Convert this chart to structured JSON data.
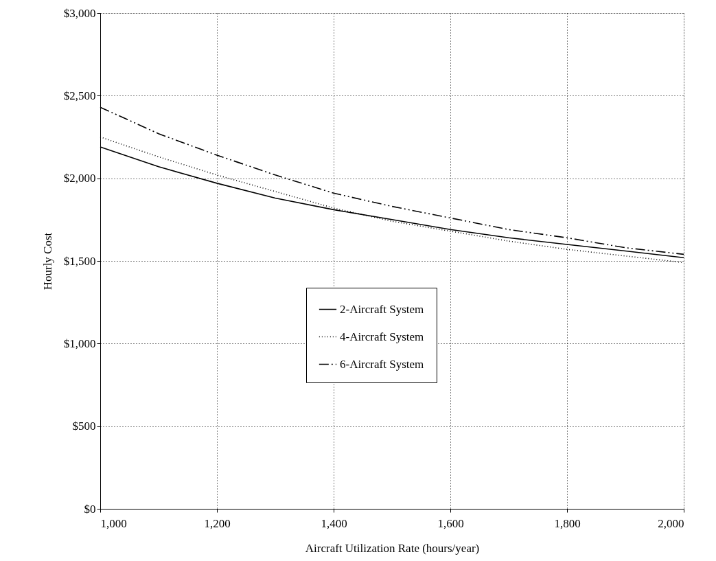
{
  "chart_data": {
    "type": "line",
    "xlabel": "Aircraft Utilization Rate (hours/year)",
    "ylabel": "Hourly Cost",
    "x": [
      1000,
      1100,
      1200,
      1300,
      1400,
      1500,
      1600,
      1700,
      1800,
      1900,
      2000
    ],
    "series": [
      {
        "name": "2-Aircraft System",
        "color": "#000000",
        "line_style": "solid",
        "values": [
          2190,
          2070,
          1970,
          1880,
          1810,
          1750,
          1690,
          1640,
          1600,
          1560,
          1520
        ]
      },
      {
        "name": "4-Aircraft System",
        "color": "#000000",
        "line_style": "dotted",
        "values": [
          2250,
          2130,
          2020,
          1920,
          1820,
          1740,
          1680,
          1620,
          1570,
          1530,
          1490
        ]
      },
      {
        "name": "6-Aircraft System",
        "color": "#000000",
        "line_style": "dashdot",
        "values": [
          2430,
          2270,
          2140,
          2020,
          1910,
          1830,
          1760,
          1690,
          1640,
          1580,
          1540
        ]
      }
    ],
    "xlim": [
      1000,
      2000
    ],
    "xticks": [
      {
        "value": 1000,
        "label": "1,000"
      },
      {
        "value": 1200,
        "label": "1,200"
      },
      {
        "value": 1400,
        "label": "1,400"
      },
      {
        "value": 1600,
        "label": "1,600"
      },
      {
        "value": 1800,
        "label": "1,800"
      },
      {
        "value": 2000,
        "label": "2,000"
      }
    ],
    "ylim": [
      0,
      3000
    ],
    "yticks": [
      {
        "value": 0,
        "label": "$0"
      },
      {
        "value": 500,
        "label": "$500"
      },
      {
        "value": 1000,
        "label": "$1,000"
      },
      {
        "value": 1500,
        "label": "$1,500"
      },
      {
        "value": 2000,
        "label": "$2,000"
      },
      {
        "value": 2500,
        "label": "$2,500"
      },
      {
        "value": 3000,
        "label": "$3,000"
      }
    ],
    "grid": true,
    "legend": "bottom"
  }
}
